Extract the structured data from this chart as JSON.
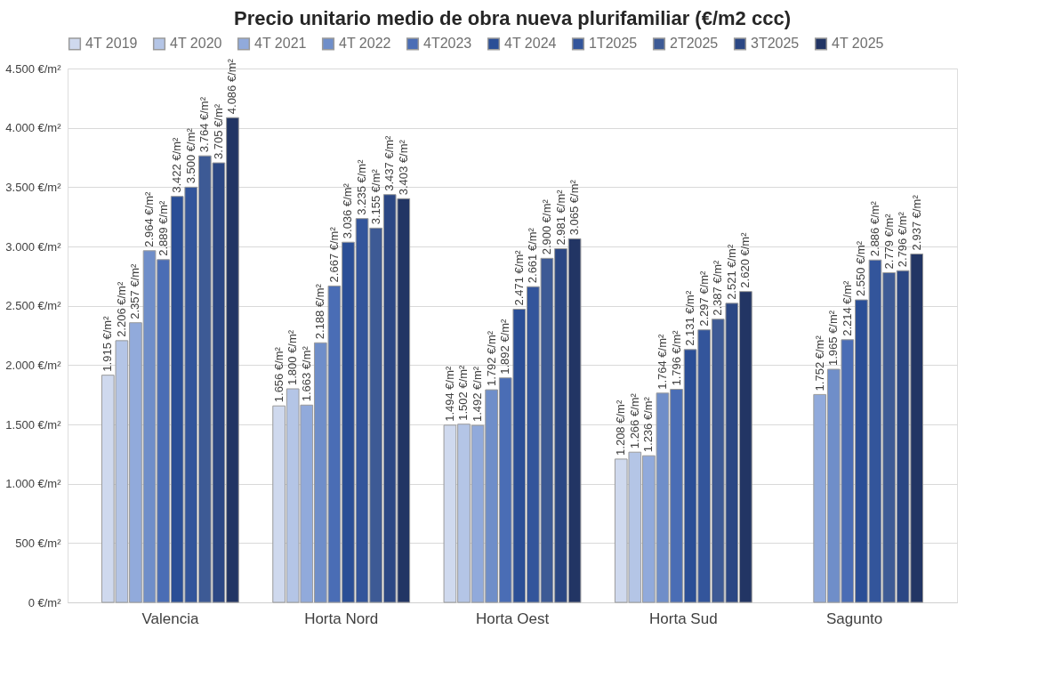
{
  "chart_data": {
    "type": "bar",
    "title": "Precio unitario medio de obra nueva plurifamiliar (€/m2 ccc)",
    "categories": [
      "Valencia",
      "Horta Nord",
      "Horta Oest",
      "Horta Sud",
      "Sagunto"
    ],
    "series": [
      {
        "name": "4T 2019",
        "color": "#cfd9ee",
        "values": [
          1915,
          1656,
          1494,
          1208,
          null
        ],
        "value_labels": [
          "1.915 €/m²",
          "1.656 €/m²",
          "1.494 €/m²",
          "1.208 €/m²",
          null
        ]
      },
      {
        "name": "4T 2020",
        "color": "#b4c5e6",
        "values": [
          2206,
          1800,
          1502,
          1266,
          null
        ],
        "value_labels": [
          "2.206 €/m²",
          "1.800 €/m²",
          "1.502 €/m²",
          "1.266 €/m²",
          null
        ]
      },
      {
        "name": "4T 2021",
        "color": "#91aadb",
        "values": [
          2357,
          1663,
          1492,
          1236,
          1752
        ],
        "value_labels": [
          "2.357 €/m²",
          "1.663 €/m²",
          "1.492 €/m²",
          "1.236 €/m²",
          "1.752 €/m²"
        ]
      },
      {
        "name": "4T 2022",
        "color": "#6f8ec9",
        "values": [
          2964,
          2188,
          1792,
          1764,
          1965
        ],
        "value_labels": [
          "2.964 €/m²",
          "2.188 €/m²",
          "1.792 €/m²",
          "1.764 €/m²",
          "1.965 €/m²"
        ]
      },
      {
        "name": "4T2023",
        "color": "#4a6db5",
        "values": [
          2889,
          2667,
          1892,
          1796,
          2214
        ],
        "value_labels": [
          "2.889 €/m²",
          "2.667 €/m²",
          "1.892 €/m²",
          "1.796 €/m²",
          "2.214 €/m²"
        ]
      },
      {
        "name": "4T 2024",
        "color": "#2a4e96",
        "values": [
          3422,
          3036,
          2471,
          2131,
          2550
        ],
        "value_labels": [
          "3.422 €/m²",
          "3.036 €/m²",
          "2.471 €/m²",
          "2.131 €/m²",
          "2.550 €/m²"
        ]
      },
      {
        "name": "1T2025",
        "color": "#33559b",
        "values": [
          3500,
          3235,
          2661,
          2297,
          2886
        ],
        "value_labels": [
          "3.500 €/m²",
          "3.235 €/m²",
          "2.661 €/m²",
          "2.297 €/m²",
          "2.886 €/m²"
        ]
      },
      {
        "name": "2T2025",
        "color": "#3d5a95",
        "values": [
          3764,
          3155,
          2900,
          2387,
          2779
        ],
        "value_labels": [
          "3.764 €/m²",
          "3.155 €/m²",
          "2.900 €/m²",
          "2.387 €/m²",
          "2.779 €/m²"
        ]
      },
      {
        "name": "3T2025",
        "color": "#2b4784",
        "values": [
          3705,
          3437,
          2981,
          2521,
          2796
        ],
        "value_labels": [
          "3.705 €/m²",
          "3.437 €/m²",
          "2.981 €/m²",
          "2.521 €/m²",
          "2.796 €/m²"
        ]
      },
      {
        "name": "4T 2025",
        "color": "#223564",
        "values": [
          4086,
          3403,
          3065,
          2620,
          2937
        ],
        "value_labels": [
          "4.086 €/m²",
          "3.403 €/m²",
          "3.065 €/m²",
          "2.620 €/m²",
          "2.937 €/m²"
        ]
      }
    ],
    "ylim": [
      0,
      4500
    ],
    "yticks": [
      {
        "value": 0,
        "label": "0 €/m²"
      },
      {
        "value": 500,
        "label": "500 €/m²"
      },
      {
        "value": 1000,
        "label": "1.000 €/m²"
      },
      {
        "value": 1500,
        "label": "1.500 €/m²"
      },
      {
        "value": 2000,
        "label": "2.000 €/m²"
      },
      {
        "value": 2500,
        "label": "2.500 €/m²"
      },
      {
        "value": 3000,
        "label": "3.000 €/m²"
      },
      {
        "value": 3500,
        "label": "3.500 €/m²"
      },
      {
        "value": 4000,
        "label": "4.000 €/m²"
      },
      {
        "value": 4500,
        "label": "4.500 €/m²"
      }
    ],
    "grid": "y",
    "legend": "top"
  }
}
